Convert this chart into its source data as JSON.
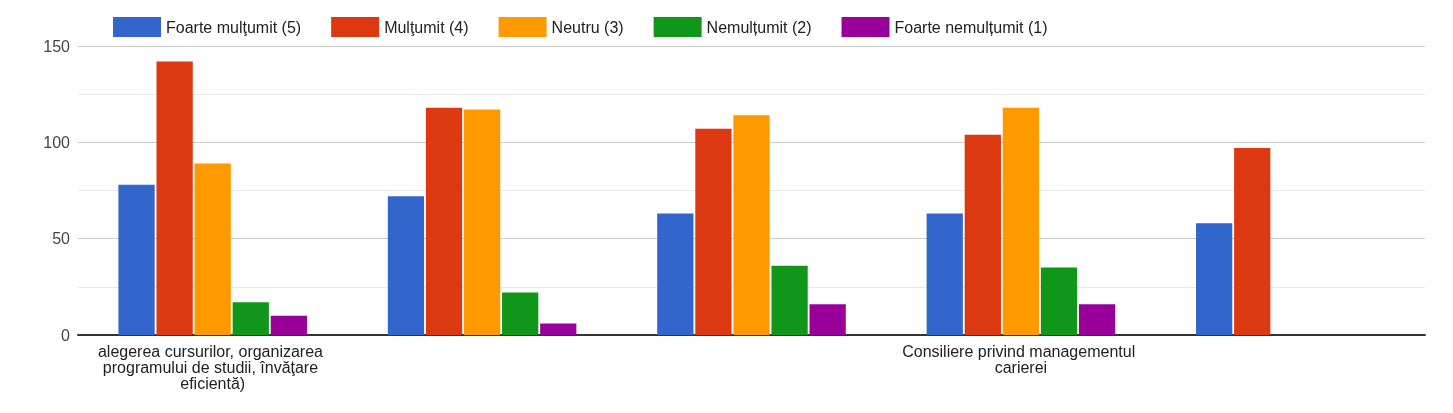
{
  "chart_data": {
    "type": "bar",
    "categories": [
      "alegerea cursurilor, organizarea programului de studii, învăţare eficientă)",
      null,
      null,
      "Consiliere privind managementul carierei",
      null
    ],
    "series": [
      {
        "name": "Foarte mulţumit (5)",
        "color": "#3366cc",
        "values": [
          78,
          72,
          63,
          63,
          58
        ]
      },
      {
        "name": "Mulţumit (4)",
        "color": "#dc3912",
        "values": [
          142,
          118,
          107,
          104,
          97
        ]
      },
      {
        "name": "Neutru (3)",
        "color": "#ff9900",
        "values": [
          89,
          117,
          114,
          118,
          null
        ]
      },
      {
        "name": "Nemulțumit (2)",
        "color": "#109618",
        "values": [
          17,
          22,
          36,
          35,
          null
        ]
      },
      {
        "name": "Foarte nemulțumit (1)",
        "color": "#990099",
        "values": [
          10,
          6,
          16,
          16,
          null
        ]
      }
    ],
    "ylim": [
      0,
      150
    ],
    "yticks": [
      0,
      50,
      100,
      150
    ],
    "grid": "y",
    "legend": "top"
  }
}
